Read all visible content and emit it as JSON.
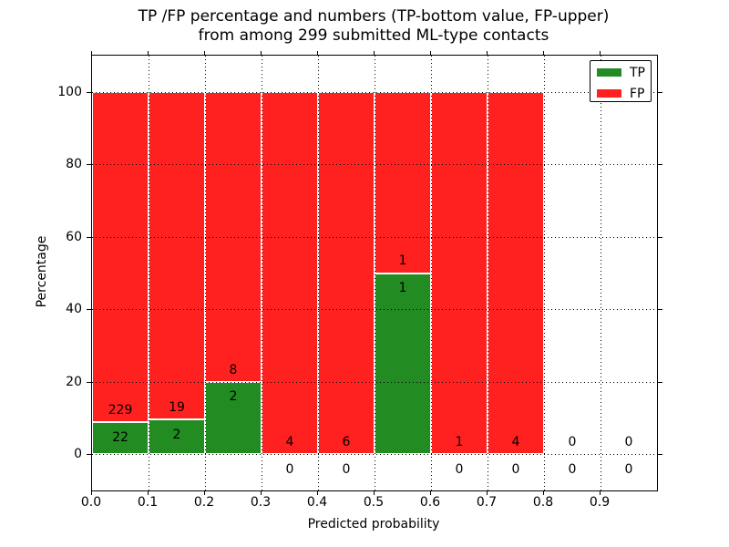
{
  "title": {
    "line1": "TP /FP percentage and numbers (TP-bottom value, FP-upper)",
    "line2": "from among 299 submitted ML-type contacts"
  },
  "axes": {
    "xlabel": "Predicted probability",
    "ylabel": "Percentage"
  },
  "legend": {
    "items": [
      {
        "label": "TP",
        "color": "#228B22"
      },
      {
        "label": "FP",
        "color": "#FF2020"
      }
    ]
  },
  "chart_data": {
    "type": "bar",
    "stacked": true,
    "title": "TP /FP percentage and numbers (TP-bottom value, FP-upper) from among 299 submitted ML-type contacts",
    "xlabel": "Predicted probability",
    "ylabel": "Percentage",
    "total_contacts": 299,
    "xlim": [
      0.0,
      1.0
    ],
    "ylim": [
      -10,
      110
    ],
    "x_bin_width": 0.1,
    "x_ticks": [
      "0.0",
      "0.1",
      "0.2",
      "0.3",
      "0.4",
      "0.5",
      "0.6",
      "0.7",
      "0.8",
      "0.9"
    ],
    "y_ticks": [
      0,
      20,
      40,
      60,
      80,
      100
    ],
    "grid": "dotted",
    "legend_position": "upper right",
    "bins": [
      {
        "range_start": 0.0,
        "tp": 22,
        "fp": 229,
        "tp_pct": 8.8,
        "fp_pct": 91.2
      },
      {
        "range_start": 0.1,
        "tp": 2,
        "fp": 19,
        "tp_pct": 9.5,
        "fp_pct": 90.5
      },
      {
        "range_start": 0.2,
        "tp": 2,
        "fp": 8,
        "tp_pct": 20.0,
        "fp_pct": 80.0
      },
      {
        "range_start": 0.3,
        "tp": 0,
        "fp": 4,
        "tp_pct": 0.0,
        "fp_pct": 100.0
      },
      {
        "range_start": 0.4,
        "tp": 0,
        "fp": 6,
        "tp_pct": 0.0,
        "fp_pct": 100.0
      },
      {
        "range_start": 0.5,
        "tp": 1,
        "fp": 1,
        "tp_pct": 50.0,
        "fp_pct": 50.0
      },
      {
        "range_start": 0.6,
        "tp": 0,
        "fp": 1,
        "tp_pct": 0.0,
        "fp_pct": 100.0
      },
      {
        "range_start": 0.7,
        "tp": 0,
        "fp": 4,
        "tp_pct": 0.0,
        "fp_pct": 100.0
      },
      {
        "range_start": 0.8,
        "tp": 0,
        "fp": 0,
        "tp_pct": 0.0,
        "fp_pct": 0.0
      },
      {
        "range_start": 0.9,
        "tp": 0,
        "fp": 0,
        "tp_pct": 0.0,
        "fp_pct": 0.0
      }
    ]
  }
}
